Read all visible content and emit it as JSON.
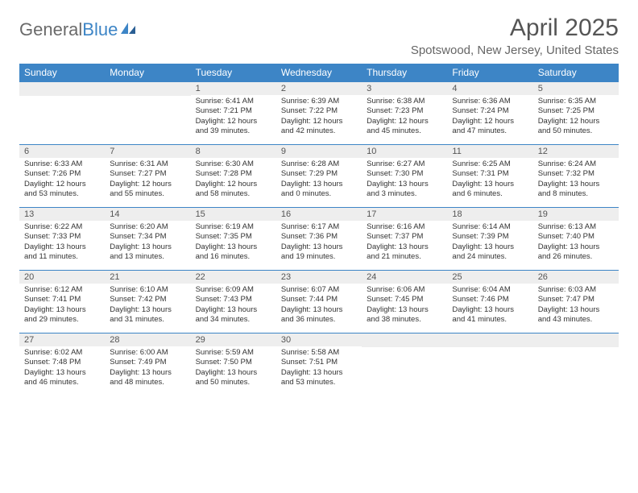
{
  "logo": {
    "word1": "General",
    "word2": "Blue"
  },
  "title": "April 2025",
  "location": "Spotswood, New Jersey, United States",
  "colors": {
    "header_bg": "#3d85c6",
    "header_text": "#ffffff",
    "daynum_bg": "#eeeeee",
    "border": "#3d85c6",
    "title_text": "#555555",
    "body_text": "#333333",
    "location_text": "#666666",
    "logo_gray": "#6a6a6a",
    "logo_blue": "#3d85c6"
  },
  "day_headers": [
    "Sunday",
    "Monday",
    "Tuesday",
    "Wednesday",
    "Thursday",
    "Friday",
    "Saturday"
  ],
  "layout": {
    "first_weekday": 2,
    "days_in_month": 30,
    "rows": 5,
    "cols": 7
  },
  "days": {
    "1": {
      "sunrise": "6:41 AM",
      "sunset": "7:21 PM",
      "dayh": 12,
      "daym": 39
    },
    "2": {
      "sunrise": "6:39 AM",
      "sunset": "7:22 PM",
      "dayh": 12,
      "daym": 42
    },
    "3": {
      "sunrise": "6:38 AM",
      "sunset": "7:23 PM",
      "dayh": 12,
      "daym": 45
    },
    "4": {
      "sunrise": "6:36 AM",
      "sunset": "7:24 PM",
      "dayh": 12,
      "daym": 47
    },
    "5": {
      "sunrise": "6:35 AM",
      "sunset": "7:25 PM",
      "dayh": 12,
      "daym": 50
    },
    "6": {
      "sunrise": "6:33 AM",
      "sunset": "7:26 PM",
      "dayh": 12,
      "daym": 53
    },
    "7": {
      "sunrise": "6:31 AM",
      "sunset": "7:27 PM",
      "dayh": 12,
      "daym": 55
    },
    "8": {
      "sunrise": "6:30 AM",
      "sunset": "7:28 PM",
      "dayh": 12,
      "daym": 58
    },
    "9": {
      "sunrise": "6:28 AM",
      "sunset": "7:29 PM",
      "dayh": 13,
      "daym": 0
    },
    "10": {
      "sunrise": "6:27 AM",
      "sunset": "7:30 PM",
      "dayh": 13,
      "daym": 3
    },
    "11": {
      "sunrise": "6:25 AM",
      "sunset": "7:31 PM",
      "dayh": 13,
      "daym": 6
    },
    "12": {
      "sunrise": "6:24 AM",
      "sunset": "7:32 PM",
      "dayh": 13,
      "daym": 8
    },
    "13": {
      "sunrise": "6:22 AM",
      "sunset": "7:33 PM",
      "dayh": 13,
      "daym": 11
    },
    "14": {
      "sunrise": "6:20 AM",
      "sunset": "7:34 PM",
      "dayh": 13,
      "daym": 13
    },
    "15": {
      "sunrise": "6:19 AM",
      "sunset": "7:35 PM",
      "dayh": 13,
      "daym": 16
    },
    "16": {
      "sunrise": "6:17 AM",
      "sunset": "7:36 PM",
      "dayh": 13,
      "daym": 19
    },
    "17": {
      "sunrise": "6:16 AM",
      "sunset": "7:37 PM",
      "dayh": 13,
      "daym": 21
    },
    "18": {
      "sunrise": "6:14 AM",
      "sunset": "7:39 PM",
      "dayh": 13,
      "daym": 24
    },
    "19": {
      "sunrise": "6:13 AM",
      "sunset": "7:40 PM",
      "dayh": 13,
      "daym": 26
    },
    "20": {
      "sunrise": "6:12 AM",
      "sunset": "7:41 PM",
      "dayh": 13,
      "daym": 29
    },
    "21": {
      "sunrise": "6:10 AM",
      "sunset": "7:42 PM",
      "dayh": 13,
      "daym": 31
    },
    "22": {
      "sunrise": "6:09 AM",
      "sunset": "7:43 PM",
      "dayh": 13,
      "daym": 34
    },
    "23": {
      "sunrise": "6:07 AM",
      "sunset": "7:44 PM",
      "dayh": 13,
      "daym": 36
    },
    "24": {
      "sunrise": "6:06 AM",
      "sunset": "7:45 PM",
      "dayh": 13,
      "daym": 38
    },
    "25": {
      "sunrise": "6:04 AM",
      "sunset": "7:46 PM",
      "dayh": 13,
      "daym": 41
    },
    "26": {
      "sunrise": "6:03 AM",
      "sunset": "7:47 PM",
      "dayh": 13,
      "daym": 43
    },
    "27": {
      "sunrise": "6:02 AM",
      "sunset": "7:48 PM",
      "dayh": 13,
      "daym": 46
    },
    "28": {
      "sunrise": "6:00 AM",
      "sunset": "7:49 PM",
      "dayh": 13,
      "daym": 48
    },
    "29": {
      "sunrise": "5:59 AM",
      "sunset": "7:50 PM",
      "dayh": 13,
      "daym": 50
    },
    "30": {
      "sunrise": "5:58 AM",
      "sunset": "7:51 PM",
      "dayh": 13,
      "daym": 53
    }
  },
  "labels": {
    "sunrise": "Sunrise:",
    "sunset": "Sunset:",
    "daylight": "Daylight:",
    "hours": "hours",
    "and": "and",
    "minutes": "minutes."
  },
  "typography": {
    "title_fontsize": 30,
    "location_fontsize": 15,
    "header_fontsize": 12,
    "daynum_fontsize": 11,
    "body_fontsize": 9.5
  }
}
